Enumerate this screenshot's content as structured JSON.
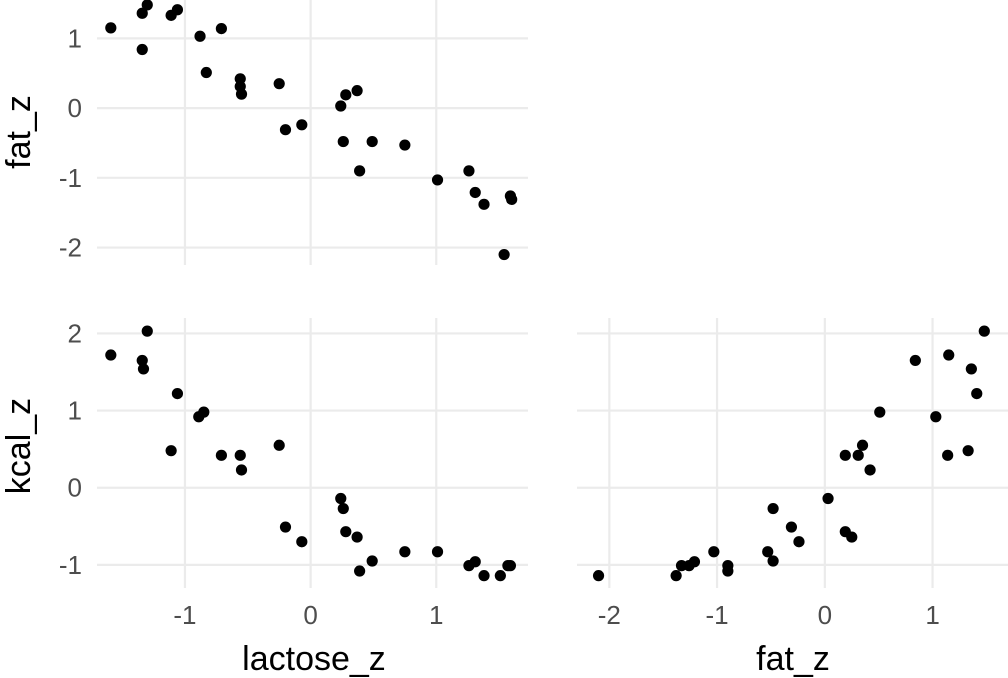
{
  "chart_data": {
    "type": "scatter",
    "layout": "pairs-matrix",
    "colors": {
      "points": "#000000",
      "grid": "#ebebeb",
      "tick_text": "#4d4d4d"
    },
    "grid": true,
    "axis_labels": {
      "x": [
        "lactose_z",
        "fat_z"
      ],
      "y": [
        "fat_z",
        "kcal_z"
      ]
    },
    "panels": [
      {
        "id": "fat-vs-lactose",
        "xvar": "lactose_z",
        "yvar": "fat_z",
        "xlim": [
          -1.7,
          1.73
        ],
        "ylim": [
          -2.25,
          1.55
        ],
        "xticks": [
          "-1",
          "0",
          "1"
        ],
        "yticks": [
          "1",
          "0",
          "-1",
          "-2"
        ],
        "points": [
          [
            -1.59,
            1.15
          ],
          [
            -1.34,
            0.84
          ],
          [
            -1.34,
            1.36
          ],
          [
            -1.3,
            1.48
          ],
          [
            -1.11,
            1.33
          ],
          [
            -1.06,
            1.41
          ],
          [
            -0.88,
            1.03
          ],
          [
            -0.83,
            0.51
          ],
          [
            -0.71,
            1.14
          ],
          [
            -0.56,
            0.42
          ],
          [
            -0.56,
            0.31
          ],
          [
            -0.55,
            0.2
          ],
          [
            -0.25,
            0.35
          ],
          [
            -0.2,
            -0.31
          ],
          [
            -0.07,
            -0.24
          ],
          [
            0.24,
            0.03
          ],
          [
            0.26,
            -0.48
          ],
          [
            0.28,
            0.19
          ],
          [
            0.37,
            0.25
          ],
          [
            0.39,
            -0.9
          ],
          [
            0.49,
            -0.48
          ],
          [
            0.75,
            -0.53
          ],
          [
            1.01,
            -1.03
          ],
          [
            1.26,
            -0.9
          ],
          [
            1.31,
            -1.21
          ],
          [
            1.38,
            -1.38
          ],
          [
            1.54,
            -2.1
          ],
          [
            1.59,
            -1.26
          ],
          [
            1.6,
            -1.31
          ]
        ]
      },
      {
        "id": "kcal-vs-lactose",
        "xvar": "lactose_z",
        "yvar": "kcal_z",
        "xlim": [
          -1.7,
          1.73
        ],
        "ylim": [
          -1.3,
          2.2
        ],
        "xticks": [
          "-1",
          "0",
          "1"
        ],
        "yticks": [
          "2",
          "1",
          "0",
          "-1"
        ],
        "points": [
          [
            -1.59,
            1.72
          ],
          [
            -1.34,
            1.65
          ],
          [
            -1.33,
            1.54
          ],
          [
            -1.3,
            2.03
          ],
          [
            -1.11,
            0.48
          ],
          [
            -1.06,
            1.22
          ],
          [
            -0.89,
            0.92
          ],
          [
            -0.85,
            0.98
          ],
          [
            -0.71,
            0.42
          ],
          [
            -0.56,
            0.42
          ],
          [
            -0.55,
            0.23
          ],
          [
            -0.25,
            0.55
          ],
          [
            -0.2,
            -0.51
          ],
          [
            -0.07,
            -0.7
          ],
          [
            0.24,
            -0.14
          ],
          [
            0.26,
            -0.27
          ],
          [
            0.28,
            -0.57
          ],
          [
            0.37,
            -0.64
          ],
          [
            0.39,
            -1.08
          ],
          [
            0.49,
            -0.95
          ],
          [
            0.75,
            -0.83
          ],
          [
            1.01,
            -0.83
          ],
          [
            1.26,
            -1.01
          ],
          [
            1.31,
            -0.96
          ],
          [
            1.38,
            -1.14
          ],
          [
            1.51,
            -1.14
          ],
          [
            1.57,
            -1.01
          ],
          [
            1.59,
            -1.01
          ]
        ]
      },
      {
        "id": "kcal-vs-fat",
        "xvar": "fat_z",
        "yvar": "kcal_z",
        "xlim": [
          -2.3,
          1.7
        ],
        "ylim": [
          -1.3,
          2.2
        ],
        "xticks": [
          "-2",
          "-1",
          "0",
          "1"
        ],
        "yticks": [],
        "points": [
          [
            -2.1,
            -1.14
          ],
          [
            -1.38,
            -1.14
          ],
          [
            -1.33,
            -1.01
          ],
          [
            -1.26,
            -1.01
          ],
          [
            -1.21,
            -0.96
          ],
          [
            -1.03,
            -0.83
          ],
          [
            -0.9,
            -1.01
          ],
          [
            -0.9,
            -1.08
          ],
          [
            -0.53,
            -0.83
          ],
          [
            -0.48,
            -0.27
          ],
          [
            -0.48,
            -0.95
          ],
          [
            -0.31,
            -0.51
          ],
          [
            -0.24,
            -0.7
          ],
          [
            0.03,
            -0.14
          ],
          [
            0.19,
            0.42
          ],
          [
            0.19,
            -0.57
          ],
          [
            0.25,
            -0.64
          ],
          [
            0.31,
            0.42
          ],
          [
            0.35,
            0.55
          ],
          [
            0.42,
            0.23
          ],
          [
            0.51,
            0.98
          ],
          [
            0.84,
            1.65
          ],
          [
            1.03,
            0.92
          ],
          [
            1.14,
            0.42
          ],
          [
            1.15,
            1.72
          ],
          [
            1.33,
            0.48
          ],
          [
            1.36,
            1.54
          ],
          [
            1.41,
            1.22
          ],
          [
            1.48,
            2.03
          ]
        ]
      }
    ]
  }
}
